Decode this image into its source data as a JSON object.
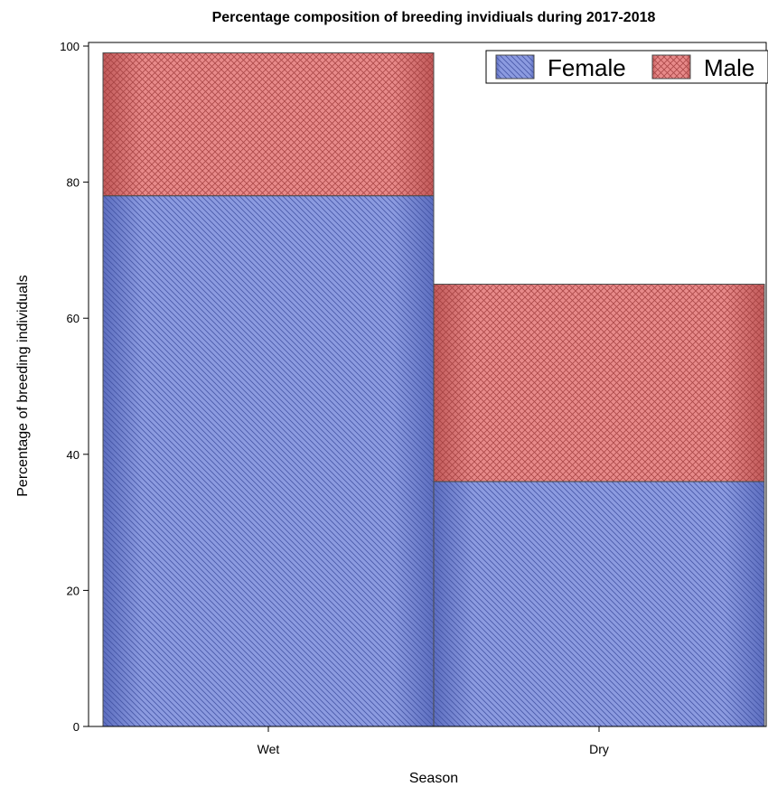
{
  "chart_data": {
    "type": "bar",
    "stacked": true,
    "title": "Percentage composition of breeding invidiuals during 2017-2018",
    "xlabel": "Season",
    "ylabel": "Percentage of breeding individuals",
    "categories": [
      "Wet",
      "Dry"
    ],
    "series": [
      {
        "name": "Female",
        "values": [
          78,
          36
        ],
        "color": "#8c9be0",
        "pattern": "diagonal-hatch"
      },
      {
        "name": "Male",
        "values": [
          21,
          29
        ],
        "color": "#e88a8a",
        "pattern": "crosshatch"
      }
    ],
    "ylim": [
      0,
      100
    ],
    "yticks": [
      0,
      20,
      40,
      60,
      80,
      100
    ],
    "grid": false,
    "legend_position": "top-right"
  }
}
